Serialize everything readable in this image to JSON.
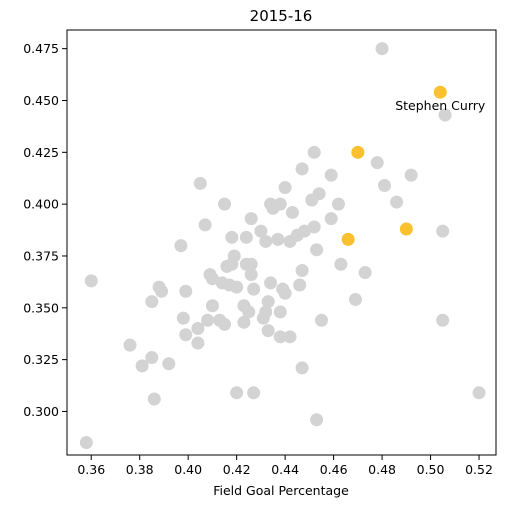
{
  "chart_data": {
    "type": "scatter",
    "title": "2015-16",
    "xlabel": "Field Goal Percentage",
    "ylabel": "",
    "xlim": [
      0.35,
      0.527
    ],
    "ylim": [
      0.279,
      0.484
    ],
    "xticks": [
      "0.36",
      "0.38",
      "0.40",
      "0.42",
      "0.44",
      "0.46",
      "0.48",
      "0.50",
      "0.52"
    ],
    "yticks": [
      "0.300",
      "0.325",
      "0.350",
      "0.375",
      "0.400",
      "0.425",
      "0.450",
      "0.475"
    ],
    "grid": false,
    "colors": {
      "base": "#d3d3d3",
      "highlight": "#fbc02d"
    },
    "annotations": [
      {
        "text": "Stephen Curry",
        "x": 0.504,
        "y": 0.454
      }
    ],
    "series": [
      {
        "role": "others",
        "points": [
          [
            0.358,
            0.285
          ],
          [
            0.36,
            0.363
          ],
          [
            0.376,
            0.332
          ],
          [
            0.381,
            0.322
          ],
          [
            0.385,
            0.326
          ],
          [
            0.385,
            0.353
          ],
          [
            0.386,
            0.306
          ],
          [
            0.388,
            0.36
          ],
          [
            0.389,
            0.358
          ],
          [
            0.392,
            0.323
          ],
          [
            0.397,
            0.38
          ],
          [
            0.398,
            0.345
          ],
          [
            0.399,
            0.337
          ],
          [
            0.399,
            0.358
          ],
          [
            0.404,
            0.333
          ],
          [
            0.404,
            0.34
          ],
          [
            0.405,
            0.41
          ],
          [
            0.407,
            0.39
          ],
          [
            0.408,
            0.344
          ],
          [
            0.409,
            0.366
          ],
          [
            0.41,
            0.351
          ],
          [
            0.41,
            0.364
          ],
          [
            0.413,
            0.344
          ],
          [
            0.414,
            0.362
          ],
          [
            0.415,
            0.342
          ],
          [
            0.415,
            0.4
          ],
          [
            0.416,
            0.37
          ],
          [
            0.417,
            0.361
          ],
          [
            0.418,
            0.384
          ],
          [
            0.418,
            0.371
          ],
          [
            0.419,
            0.375
          ],
          [
            0.42,
            0.36
          ],
          [
            0.42,
            0.309
          ],
          [
            0.423,
            0.343
          ],
          [
            0.423,
            0.351
          ],
          [
            0.424,
            0.371
          ],
          [
            0.424,
            0.384
          ],
          [
            0.425,
            0.348
          ],
          [
            0.426,
            0.393
          ],
          [
            0.426,
            0.366
          ],
          [
            0.426,
            0.371
          ],
          [
            0.427,
            0.309
          ],
          [
            0.427,
            0.359
          ],
          [
            0.43,
            0.387
          ],
          [
            0.431,
            0.345
          ],
          [
            0.432,
            0.382
          ],
          [
            0.432,
            0.348
          ],
          [
            0.433,
            0.353
          ],
          [
            0.433,
            0.339
          ],
          [
            0.434,
            0.4
          ],
          [
            0.434,
            0.362
          ],
          [
            0.435,
            0.398
          ],
          [
            0.437,
            0.383
          ],
          [
            0.438,
            0.4
          ],
          [
            0.438,
            0.348
          ],
          [
            0.438,
            0.336
          ],
          [
            0.439,
            0.359
          ],
          [
            0.44,
            0.357
          ],
          [
            0.44,
            0.408
          ],
          [
            0.442,
            0.382
          ],
          [
            0.442,
            0.336
          ],
          [
            0.443,
            0.396
          ],
          [
            0.445,
            0.385
          ],
          [
            0.446,
            0.361
          ],
          [
            0.447,
            0.417
          ],
          [
            0.447,
            0.368
          ],
          [
            0.447,
            0.321
          ],
          [
            0.448,
            0.387
          ],
          [
            0.451,
            0.402
          ],
          [
            0.452,
            0.389
          ],
          [
            0.452,
            0.425
          ],
          [
            0.453,
            0.378
          ],
          [
            0.453,
            0.296
          ],
          [
            0.454,
            0.405
          ],
          [
            0.455,
            0.344
          ],
          [
            0.459,
            0.393
          ],
          [
            0.459,
            0.414
          ],
          [
            0.462,
            0.4
          ],
          [
            0.463,
            0.371
          ],
          [
            0.469,
            0.354
          ],
          [
            0.473,
            0.367
          ],
          [
            0.478,
            0.42
          ],
          [
            0.48,
            0.475
          ],
          [
            0.481,
            0.409
          ],
          [
            0.486,
            0.401
          ],
          [
            0.492,
            0.414
          ],
          [
            0.505,
            0.387
          ],
          [
            0.505,
            0.344
          ],
          [
            0.506,
            0.443
          ],
          [
            0.52,
            0.309
          ]
        ]
      },
      {
        "role": "highlighted",
        "points": [
          [
            0.466,
            0.383
          ],
          [
            0.47,
            0.425
          ],
          [
            0.49,
            0.388
          ],
          [
            0.504,
            0.454
          ]
        ]
      }
    ]
  }
}
